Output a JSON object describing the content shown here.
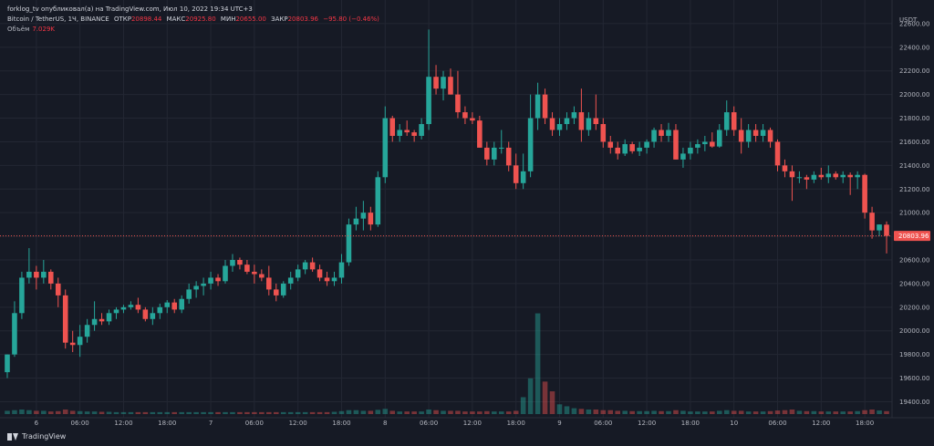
{
  "header": {
    "publisher": "forklog_tv опубликовал(а) на TradingView.com, Июл 10, 2022 19:34 UTC+3",
    "symbol": "Bitcoin / TetherUS, 1Ч, BINANCE",
    "open_label": "ОТКР",
    "open_value": "20898.44",
    "high_label": "МАКС",
    "high_value": "20925.80",
    "low_label": "МИН",
    "low_value": "20655.00",
    "close_label": "ЗАКР",
    "close_value": "20803.96",
    "change_value": "−95.80 (−0.46%)",
    "volume_label": "Объём",
    "volume_value": "7.029K"
  },
  "footer": {
    "brand": "TradingView"
  },
  "colors": {
    "background": "#161a25",
    "up": "#26a69a",
    "down": "#ef5350",
    "grid": "#232733",
    "axis_text": "#b2b5be",
    "price_tag": "#ef5350"
  },
  "chart_data": {
    "type": "candlestick",
    "currency": "USDT",
    "ylim": [
      19280,
      22800
    ],
    "yticks": [
      19400,
      19600,
      19800,
      20000,
      20200,
      20400,
      20600,
      20800,
      21000,
      21200,
      21400,
      21600,
      21800,
      22000,
      22200,
      22400,
      22600
    ],
    "ytick_labels": [
      "19400.00",
      "19600.00",
      "19800.00",
      "20000.00",
      "20200.00",
      "20400.00",
      "20600.00",
      "20800.00",
      "21000.00",
      "21200.00",
      "21400.00",
      "21600.00",
      "21800.00",
      "22000.00",
      "22200.00",
      "22400.00",
      "22600.00"
    ],
    "x_ticks": [
      {
        "index": 4,
        "label": "6"
      },
      {
        "index": 10,
        "label": "06:00"
      },
      {
        "index": 16,
        "label": "12:00"
      },
      {
        "index": 22,
        "label": "18:00"
      },
      {
        "index": 28,
        "label": "7"
      },
      {
        "index": 34,
        "label": "06:00"
      },
      {
        "index": 40,
        "label": "12:00"
      },
      {
        "index": 46,
        "label": "18:00"
      },
      {
        "index": 52,
        "label": "8"
      },
      {
        "index": 58,
        "label": "06:00"
      },
      {
        "index": 64,
        "label": "12:00"
      },
      {
        "index": 70,
        "label": "18:00"
      },
      {
        "index": 76,
        "label": "9"
      },
      {
        "index": 82,
        "label": "06:00"
      },
      {
        "index": 88,
        "label": "12:00"
      },
      {
        "index": 94,
        "label": "18:00"
      },
      {
        "index": 100,
        "label": "10"
      },
      {
        "index": 106,
        "label": "06:00"
      },
      {
        "index": 112,
        "label": "12:00"
      },
      {
        "index": 118,
        "label": "18:00"
      }
    ],
    "last_price": 20803.96,
    "last_price_label": "20803.96",
    "volume_max": 16000,
    "candles": [
      {
        "o": 19650,
        "h": 19800,
        "l": 19600,
        "c": 19800,
        "v": 500
      },
      {
        "o": 19800,
        "h": 20250,
        "l": 19780,
        "c": 20150,
        "v": 600
      },
      {
        "o": 20150,
        "h": 20500,
        "l": 20100,
        "c": 20450,
        "v": 700
      },
      {
        "o": 20450,
        "h": 20700,
        "l": 20400,
        "c": 20500,
        "v": 600
      },
      {
        "o": 20500,
        "h": 20550,
        "l": 20350,
        "c": 20450,
        "v": 500
      },
      {
        "o": 20450,
        "h": 20600,
        "l": 20400,
        "c": 20500,
        "v": 500
      },
      {
        "o": 20500,
        "h": 20520,
        "l": 20350,
        "c": 20400,
        "v": 400
      },
      {
        "o": 20400,
        "h": 20450,
        "l": 20200,
        "c": 20300,
        "v": 450
      },
      {
        "o": 20300,
        "h": 20350,
        "l": 19850,
        "c": 19900,
        "v": 700
      },
      {
        "o": 19900,
        "h": 20000,
        "l": 19820,
        "c": 19880,
        "v": 500
      },
      {
        "o": 19880,
        "h": 20050,
        "l": 19780,
        "c": 19950,
        "v": 450
      },
      {
        "o": 19950,
        "h": 20100,
        "l": 19900,
        "c": 20050,
        "v": 400
      },
      {
        "o": 20050,
        "h": 20250,
        "l": 20000,
        "c": 20100,
        "v": 400
      },
      {
        "o": 20100,
        "h": 20150,
        "l": 20050,
        "c": 20080,
        "v": 350
      },
      {
        "o": 20080,
        "h": 20180,
        "l": 20050,
        "c": 20150,
        "v": 350
      },
      {
        "o": 20150,
        "h": 20200,
        "l": 20100,
        "c": 20180,
        "v": 300
      },
      {
        "o": 20180,
        "h": 20220,
        "l": 20150,
        "c": 20200,
        "v": 300
      },
      {
        "o": 20200,
        "h": 20250,
        "l": 20180,
        "c": 20220,
        "v": 300
      },
      {
        "o": 20220,
        "h": 20280,
        "l": 20150,
        "c": 20180,
        "v": 300
      },
      {
        "o": 20180,
        "h": 20200,
        "l": 20080,
        "c": 20100,
        "v": 300
      },
      {
        "o": 20100,
        "h": 20200,
        "l": 20050,
        "c": 20150,
        "v": 300
      },
      {
        "o": 20150,
        "h": 20230,
        "l": 20100,
        "c": 20200,
        "v": 300
      },
      {
        "o": 20200,
        "h": 20260,
        "l": 20150,
        "c": 20240,
        "v": 300
      },
      {
        "o": 20240,
        "h": 20270,
        "l": 20150,
        "c": 20180,
        "v": 300
      },
      {
        "o": 20180,
        "h": 20300,
        "l": 20150,
        "c": 20270,
        "v": 300
      },
      {
        "o": 20270,
        "h": 20400,
        "l": 20230,
        "c": 20350,
        "v": 300
      },
      {
        "o": 20350,
        "h": 20420,
        "l": 20280,
        "c": 20380,
        "v": 300
      },
      {
        "o": 20380,
        "h": 20450,
        "l": 20300,
        "c": 20400,
        "v": 300
      },
      {
        "o": 20400,
        "h": 20500,
        "l": 20350,
        "c": 20450,
        "v": 300
      },
      {
        "o": 20450,
        "h": 20480,
        "l": 20380,
        "c": 20420,
        "v": 300
      },
      {
        "o": 20420,
        "h": 20600,
        "l": 20400,
        "c": 20550,
        "v": 300
      },
      {
        "o": 20550,
        "h": 20650,
        "l": 20500,
        "c": 20600,
        "v": 300
      },
      {
        "o": 20600,
        "h": 20620,
        "l": 20520,
        "c": 20560,
        "v": 300
      },
      {
        "o": 20560,
        "h": 20600,
        "l": 20480,
        "c": 20500,
        "v": 300
      },
      {
        "o": 20500,
        "h": 20560,
        "l": 20400,
        "c": 20480,
        "v": 300
      },
      {
        "o": 20480,
        "h": 20520,
        "l": 20420,
        "c": 20450,
        "v": 300
      },
      {
        "o": 20450,
        "h": 20550,
        "l": 20300,
        "c": 20350,
        "v": 300
      },
      {
        "o": 20350,
        "h": 20400,
        "l": 20250,
        "c": 20300,
        "v": 300
      },
      {
        "o": 20300,
        "h": 20420,
        "l": 20280,
        "c": 20400,
        "v": 300
      },
      {
        "o": 20400,
        "h": 20500,
        "l": 20350,
        "c": 20450,
        "v": 300
      },
      {
        "o": 20450,
        "h": 20560,
        "l": 20420,
        "c": 20520,
        "v": 300
      },
      {
        "o": 20520,
        "h": 20600,
        "l": 20480,
        "c": 20580,
        "v": 300
      },
      {
        "o": 20580,
        "h": 20620,
        "l": 20500,
        "c": 20520,
        "v": 300
      },
      {
        "o": 20520,
        "h": 20560,
        "l": 20420,
        "c": 20450,
        "v": 300
      },
      {
        "o": 20450,
        "h": 20500,
        "l": 20380,
        "c": 20420,
        "v": 300
      },
      {
        "o": 20420,
        "h": 20500,
        "l": 20380,
        "c": 20450,
        "v": 350
      },
      {
        "o": 20450,
        "h": 20650,
        "l": 20400,
        "c": 20580,
        "v": 450
      },
      {
        "o": 20580,
        "h": 20950,
        "l": 20550,
        "c": 20900,
        "v": 600
      },
      {
        "o": 20900,
        "h": 21050,
        "l": 20850,
        "c": 20950,
        "v": 600
      },
      {
        "o": 20950,
        "h": 21100,
        "l": 20850,
        "c": 21000,
        "v": 500
      },
      {
        "o": 21000,
        "h": 21050,
        "l": 20850,
        "c": 20900,
        "v": 500
      },
      {
        "o": 20900,
        "h": 21350,
        "l": 20880,
        "c": 21300,
        "v": 650
      },
      {
        "o": 21300,
        "h": 21900,
        "l": 21250,
        "c": 21800,
        "v": 800
      },
      {
        "o": 21800,
        "h": 21820,
        "l": 21600,
        "c": 21650,
        "v": 500
      },
      {
        "o": 21650,
        "h": 21750,
        "l": 21600,
        "c": 21700,
        "v": 400
      },
      {
        "o": 21700,
        "h": 21780,
        "l": 21650,
        "c": 21680,
        "v": 400
      },
      {
        "o": 21680,
        "h": 21700,
        "l": 21600,
        "c": 21650,
        "v": 400
      },
      {
        "o": 21650,
        "h": 21800,
        "l": 21620,
        "c": 21750,
        "v": 400
      },
      {
        "o": 21750,
        "h": 22550,
        "l": 21700,
        "c": 22150,
        "v": 700
      },
      {
        "o": 22150,
        "h": 22250,
        "l": 22000,
        "c": 22050,
        "v": 600
      },
      {
        "o": 22050,
        "h": 22200,
        "l": 21950,
        "c": 22150,
        "v": 500
      },
      {
        "o": 22150,
        "h": 22220,
        "l": 22000,
        "c": 22000,
        "v": 500
      },
      {
        "o": 22000,
        "h": 22200,
        "l": 21800,
        "c": 21850,
        "v": 500
      },
      {
        "o": 21850,
        "h": 21900,
        "l": 21750,
        "c": 21800,
        "v": 400
      },
      {
        "o": 21800,
        "h": 21850,
        "l": 21750,
        "c": 21780,
        "v": 400
      },
      {
        "o": 21780,
        "h": 21820,
        "l": 21550,
        "c": 21550,
        "v": 400
      },
      {
        "o": 21550,
        "h": 21600,
        "l": 21400,
        "c": 21450,
        "v": 450
      },
      {
        "o": 21450,
        "h": 21600,
        "l": 21400,
        "c": 21550,
        "v": 400
      },
      {
        "o": 21550,
        "h": 21700,
        "l": 21500,
        "c": 21550,
        "v": 400
      },
      {
        "o": 21550,
        "h": 21600,
        "l": 21350,
        "c": 21400,
        "v": 400
      },
      {
        "o": 21400,
        "h": 21500,
        "l": 21200,
        "c": 21250,
        "v": 500
      },
      {
        "o": 21250,
        "h": 21500,
        "l": 21200,
        "c": 21350,
        "v": 2600
      },
      {
        "o": 21350,
        "h": 22000,
        "l": 21300,
        "c": 21800,
        "v": 5500
      },
      {
        "o": 21800,
        "h": 22100,
        "l": 21700,
        "c": 22000,
        "v": 15500
      },
      {
        "o": 22000,
        "h": 22050,
        "l": 21750,
        "c": 21800,
        "v": 5000
      },
      {
        "o": 21800,
        "h": 21850,
        "l": 21650,
        "c": 21700,
        "v": 3500
      },
      {
        "o": 21700,
        "h": 21800,
        "l": 21650,
        "c": 21750,
        "v": 1500
      },
      {
        "o": 21750,
        "h": 21850,
        "l": 21700,
        "c": 21800,
        "v": 1200
      },
      {
        "o": 21800,
        "h": 21900,
        "l": 21750,
        "c": 21850,
        "v": 900
      },
      {
        "o": 21850,
        "h": 22050,
        "l": 21600,
        "c": 21700,
        "v": 800
      },
      {
        "o": 21700,
        "h": 21850,
        "l": 21650,
        "c": 21800,
        "v": 700
      },
      {
        "o": 21800,
        "h": 22000,
        "l": 21700,
        "c": 21750,
        "v": 700
      },
      {
        "o": 21750,
        "h": 21800,
        "l": 21550,
        "c": 21600,
        "v": 600
      },
      {
        "o": 21600,
        "h": 21650,
        "l": 21500,
        "c": 21550,
        "v": 600
      },
      {
        "o": 21550,
        "h": 21600,
        "l": 21450,
        "c": 21500,
        "v": 500
      },
      {
        "o": 21500,
        "h": 21620,
        "l": 21480,
        "c": 21580,
        "v": 500
      },
      {
        "o": 21580,
        "h": 21600,
        "l": 21500,
        "c": 21520,
        "v": 450
      },
      {
        "o": 21520,
        "h": 21600,
        "l": 21480,
        "c": 21550,
        "v": 450
      },
      {
        "o": 21550,
        "h": 21620,
        "l": 21500,
        "c": 21600,
        "v": 450
      },
      {
        "o": 21600,
        "h": 21720,
        "l": 21550,
        "c": 21700,
        "v": 500
      },
      {
        "o": 21700,
        "h": 21750,
        "l": 21600,
        "c": 21650,
        "v": 450
      },
      {
        "o": 21650,
        "h": 21760,
        "l": 21600,
        "c": 21700,
        "v": 450
      },
      {
        "o": 21700,
        "h": 21750,
        "l": 21450,
        "c": 21450,
        "v": 600
      },
      {
        "o": 21450,
        "h": 21550,
        "l": 21380,
        "c": 21500,
        "v": 500
      },
      {
        "o": 21500,
        "h": 21600,
        "l": 21450,
        "c": 21550,
        "v": 400
      },
      {
        "o": 21550,
        "h": 21620,
        "l": 21500,
        "c": 21580,
        "v": 400
      },
      {
        "o": 21580,
        "h": 21650,
        "l": 21520,
        "c": 21600,
        "v": 400
      },
      {
        "o": 21600,
        "h": 21680,
        "l": 21550,
        "c": 21560,
        "v": 400
      },
      {
        "o": 21560,
        "h": 21750,
        "l": 21550,
        "c": 21700,
        "v": 500
      },
      {
        "o": 21700,
        "h": 21950,
        "l": 21650,
        "c": 21850,
        "v": 600
      },
      {
        "o": 21850,
        "h": 21900,
        "l": 21650,
        "c": 21700,
        "v": 500
      },
      {
        "o": 21700,
        "h": 21800,
        "l": 21500,
        "c": 21600,
        "v": 500
      },
      {
        "o": 21600,
        "h": 21750,
        "l": 21550,
        "c": 21700,
        "v": 400
      },
      {
        "o": 21700,
        "h": 21750,
        "l": 21600,
        "c": 21650,
        "v": 400
      },
      {
        "o": 21650,
        "h": 21750,
        "l": 21600,
        "c": 21700,
        "v": 400
      },
      {
        "o": 21700,
        "h": 21720,
        "l": 21550,
        "c": 21600,
        "v": 450
      },
      {
        "o": 21600,
        "h": 21620,
        "l": 21350,
        "c": 21400,
        "v": 550
      },
      {
        "o": 21400,
        "h": 21450,
        "l": 21300,
        "c": 21350,
        "v": 600
      },
      {
        "o": 21350,
        "h": 21400,
        "l": 21100,
        "c": 21300,
        "v": 700
      },
      {
        "o": 21300,
        "h": 21350,
        "l": 21250,
        "c": 21300,
        "v": 500
      },
      {
        "o": 21300,
        "h": 21320,
        "l": 21200,
        "c": 21280,
        "v": 450
      },
      {
        "o": 21280,
        "h": 21350,
        "l": 21250,
        "c": 21320,
        "v": 450
      },
      {
        "o": 21320,
        "h": 21380,
        "l": 21280,
        "c": 21300,
        "v": 400
      },
      {
        "o": 21300,
        "h": 21400,
        "l": 21250,
        "c": 21330,
        "v": 400
      },
      {
        "o": 21330,
        "h": 21350,
        "l": 21280,
        "c": 21300,
        "v": 400
      },
      {
        "o": 21300,
        "h": 21350,
        "l": 21250,
        "c": 21320,
        "v": 400
      },
      {
        "o": 21320,
        "h": 21340,
        "l": 21150,
        "c": 21300,
        "v": 400
      },
      {
        "o": 21300,
        "h": 21350,
        "l": 21200,
        "c": 21320,
        "v": 450
      },
      {
        "o": 21320,
        "h": 21330,
        "l": 20950,
        "c": 21000,
        "v": 600
      },
      {
        "o": 21000,
        "h": 21050,
        "l": 20780,
        "c": 20850,
        "v": 700
      },
      {
        "o": 20850,
        "h": 20900,
        "l": 20800,
        "c": 20900,
        "v": 550
      },
      {
        "o": 20898.44,
        "h": 20925.8,
        "l": 20655,
        "c": 20803.96,
        "v": 450
      }
    ]
  }
}
